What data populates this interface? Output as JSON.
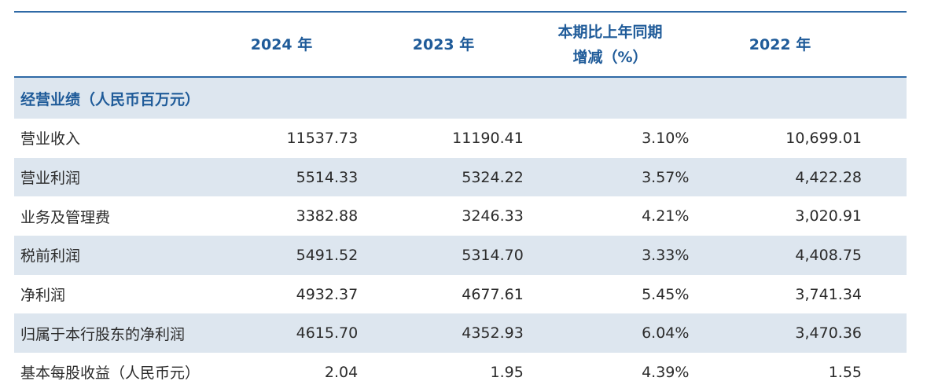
{
  "header": {
    "col_2024": "2024 年",
    "col_2023": "2023 年",
    "col_change_line1": "本期比上年同期",
    "col_change_line2": "增减（%）",
    "col_2022": "2022 年"
  },
  "section": {
    "title": "经营业绩（人民币百万元）"
  },
  "rows": [
    {
      "label": "营业收入",
      "v2024": "11537.73",
      "v2023": "11190.41",
      "change": "3.10%",
      "v2022": "10,699.01"
    },
    {
      "label": "营业利润",
      "v2024": "5514.33",
      "v2023": "5324.22",
      "change": "3.57%",
      "v2022": "4,422.28"
    },
    {
      "label": "业务及管理费",
      "v2024": "3382.88",
      "v2023": "3246.33",
      "change": "4.21%",
      "v2022": "3,020.91"
    },
    {
      "label": "税前利润",
      "v2024": "5491.52",
      "v2023": "5314.70",
      "change": "3.33%",
      "v2022": "4,408.75"
    },
    {
      "label": "净利润",
      "v2024": "4932.37",
      "v2023": "4677.61",
      "change": "5.45%",
      "v2022": "3,741.34"
    },
    {
      "label": "归属于本行股东的净利润",
      "v2024": "4615.70",
      "v2023": "4352.93",
      "change": "6.04%",
      "v2022": "3,470.36"
    },
    {
      "label": "基本每股收益（人民币元）",
      "v2024": "2.04",
      "v2023": "1.95",
      "change": "4.39%",
      "v2022": "1.55"
    }
  ]
}
